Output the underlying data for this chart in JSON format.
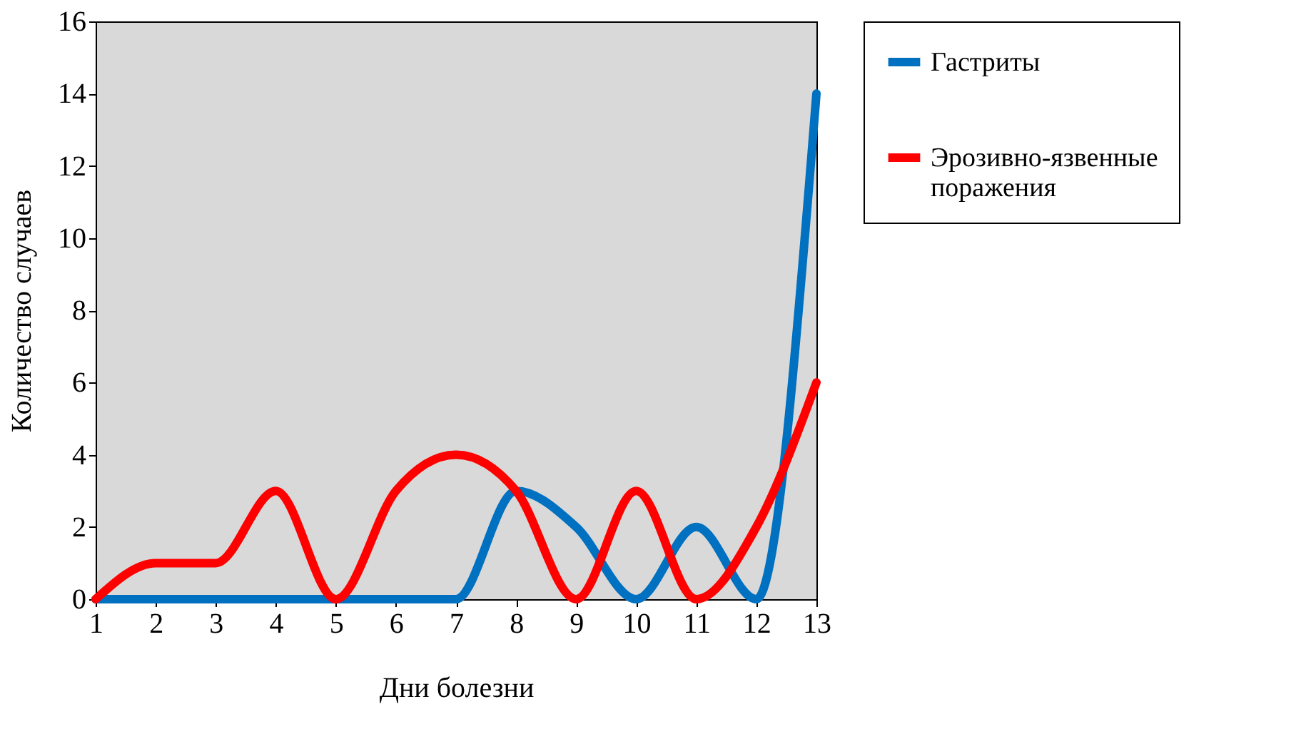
{
  "chart_data": {
    "type": "line",
    "xlabel": "Дни болезни",
    "ylabel": "Количество случаев",
    "x": [
      1,
      2,
      3,
      4,
      5,
      6,
      7,
      8,
      9,
      10,
      11,
      12,
      13
    ],
    "series": [
      {
        "name": "Гастриты",
        "color": "#0070c0",
        "values": [
          0,
          0,
          0,
          0,
          0,
          0,
          0,
          3,
          2,
          0,
          2,
          0,
          14
        ]
      },
      {
        "name": "Эрозивно-язвенные поражения",
        "color": "#ff0000",
        "values": [
          0,
          1,
          1,
          3,
          0,
          3,
          4,
          3,
          0,
          3,
          0,
          2,
          6
        ]
      }
    ],
    "xlim": [
      1,
      13
    ],
    "xticks": [
      1,
      2,
      3,
      4,
      5,
      6,
      7,
      8,
      9,
      10,
      11,
      12,
      13
    ],
    "ylim": [
      0,
      16
    ],
    "yticks": [
      0,
      2,
      4,
      6,
      8,
      10,
      12,
      14,
      16
    ],
    "grid": false,
    "legend": "right",
    "marker": "none",
    "line_style": "solid"
  }
}
